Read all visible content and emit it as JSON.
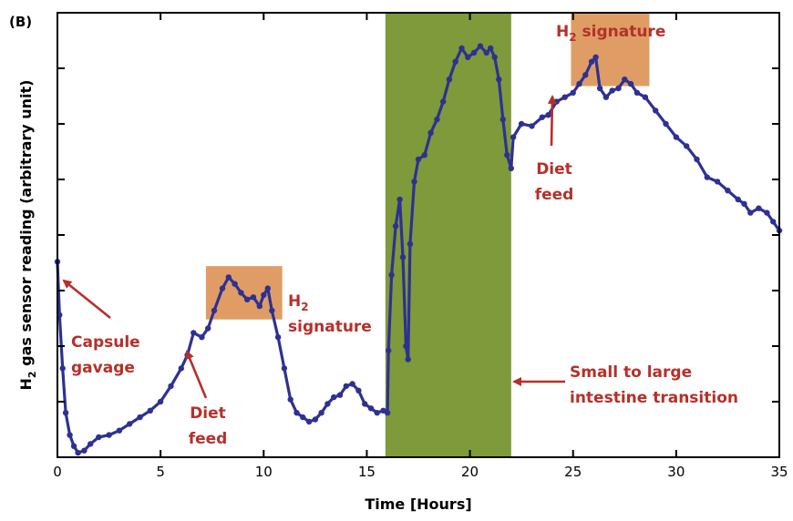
{
  "chart_data": {
    "type": "line",
    "panel_label": "(B)",
    "xlabel": "Time [Hours]",
    "ylabel_parts": [
      "H",
      "2",
      " gas sensor reading (arbitrary unit)"
    ],
    "xlim": [
      0,
      35
    ],
    "ylim": [
      0,
      100
    ],
    "x_ticks": [
      0,
      5,
      10,
      15,
      20,
      25,
      30,
      35
    ],
    "y_ticks_count": 9,
    "y_tick_labels_shown": false,
    "colors": {
      "series": "#2e3192",
      "highlight_box": "#d98c4a",
      "transition_band": "#7e9a3a",
      "annotation": "#b5302a"
    },
    "series": [
      {
        "values": [
          [
            0.0,
            44
          ],
          [
            0.1,
            32
          ],
          [
            0.25,
            20
          ],
          [
            0.4,
            10
          ],
          [
            0.6,
            5
          ],
          [
            0.8,
            2.5
          ],
          [
            1.0,
            1
          ],
          [
            1.3,
            1.5
          ],
          [
            1.6,
            3
          ],
          [
            2.0,
            4.5
          ],
          [
            2.5,
            5
          ],
          [
            3.0,
            6
          ],
          [
            3.5,
            7.5
          ],
          [
            4.0,
            9
          ],
          [
            4.5,
            10.5
          ],
          [
            5.0,
            12.5
          ],
          [
            5.5,
            16
          ],
          [
            6.0,
            20
          ],
          [
            6.3,
            23
          ],
          [
            6.6,
            28
          ],
          [
            7.0,
            27
          ],
          [
            7.3,
            29
          ],
          [
            7.6,
            33
          ],
          [
            8.0,
            38
          ],
          [
            8.3,
            40.5
          ],
          [
            8.6,
            39
          ],
          [
            8.9,
            37
          ],
          [
            9.2,
            35.5
          ],
          [
            9.5,
            36
          ],
          [
            9.8,
            34
          ],
          [
            10.0,
            36.5
          ],
          [
            10.2,
            38
          ],
          [
            10.4,
            33
          ],
          [
            10.7,
            27
          ],
          [
            11.0,
            20
          ],
          [
            11.3,
            13
          ],
          [
            11.6,
            10
          ],
          [
            11.9,
            9
          ],
          [
            12.2,
            8
          ],
          [
            12.5,
            8.5
          ],
          [
            12.8,
            10
          ],
          [
            13.1,
            12
          ],
          [
            13.4,
            13.5
          ],
          [
            13.7,
            14
          ],
          [
            14.0,
            16
          ],
          [
            14.3,
            16.5
          ],
          [
            14.6,
            15
          ],
          [
            14.9,
            12
          ],
          [
            15.2,
            11
          ],
          [
            15.5,
            10
          ],
          [
            15.8,
            10.5
          ],
          [
            16.0,
            10
          ],
          [
            16.05,
            24
          ],
          [
            16.2,
            41
          ],
          [
            16.4,
            52
          ],
          [
            16.6,
            58
          ],
          [
            16.75,
            45
          ],
          [
            16.9,
            25
          ],
          [
            17.0,
            22
          ],
          [
            17.1,
            48
          ],
          [
            17.3,
            62
          ],
          [
            17.5,
            67
          ],
          [
            17.8,
            68
          ],
          [
            18.1,
            73
          ],
          [
            18.4,
            76
          ],
          [
            18.7,
            80
          ],
          [
            19.0,
            85
          ],
          [
            19.3,
            89
          ],
          [
            19.6,
            92
          ],
          [
            19.9,
            90
          ],
          [
            20.2,
            91
          ],
          [
            20.5,
            92.5
          ],
          [
            20.8,
            91
          ],
          [
            21.0,
            92
          ],
          [
            21.2,
            90
          ],
          [
            21.4,
            85
          ],
          [
            21.6,
            76
          ],
          [
            21.8,
            68
          ],
          [
            22.0,
            65
          ],
          [
            22.1,
            72
          ],
          [
            22.5,
            75
          ],
          [
            23.0,
            74.5
          ],
          [
            23.5,
            76.5
          ],
          [
            23.8,
            77
          ],
          [
            24.2,
            80
          ],
          [
            24.6,
            81
          ],
          [
            25.0,
            82
          ],
          [
            25.3,
            84
          ],
          [
            25.6,
            86
          ],
          [
            25.9,
            89
          ],
          [
            26.1,
            90
          ],
          [
            26.3,
            83
          ],
          [
            26.6,
            81
          ],
          [
            26.9,
            82.5
          ],
          [
            27.2,
            83
          ],
          [
            27.5,
            85
          ],
          [
            27.8,
            84
          ],
          [
            28.1,
            82
          ],
          [
            28.5,
            81
          ],
          [
            29.0,
            78
          ],
          [
            29.5,
            75
          ],
          [
            30.0,
            72
          ],
          [
            30.5,
            70
          ],
          [
            31.0,
            67
          ],
          [
            31.5,
            63
          ],
          [
            32.0,
            62
          ],
          [
            32.5,
            60
          ],
          [
            33.0,
            58
          ],
          [
            33.3,
            57
          ],
          [
            33.6,
            55
          ],
          [
            34.0,
            56
          ],
          [
            34.4,
            55
          ],
          [
            34.7,
            53
          ],
          [
            35.0,
            51
          ]
        ]
      }
    ],
    "shaded_regions": [
      {
        "x_start": 15.9,
        "x_end": 22.0,
        "label": "Small to large intestine transition"
      }
    ],
    "highlight_boxes": [
      {
        "x_range": [
          7.2,
          10.9
        ],
        "y_range": [
          31,
          43
        ]
      },
      {
        "x_range": [
          24.9,
          28.7
        ],
        "y_range": [
          83.5,
          100
        ]
      }
    ],
    "annotations": [
      {
        "lines": [
          "Capsule",
          "gavage"
        ]
      },
      {
        "lines": [
          "Diet",
          "feed"
        ]
      },
      {
        "lines_parts": [
          [
            "H",
            "2"
          ],
          [
            "signature"
          ]
        ]
      },
      {
        "lines": [
          "Small to large",
          "intestine transition"
        ]
      },
      {
        "lines": [
          "Diet",
          "feed"
        ]
      },
      {
        "parts": [
          "H",
          "2",
          " signature"
        ]
      }
    ]
  }
}
